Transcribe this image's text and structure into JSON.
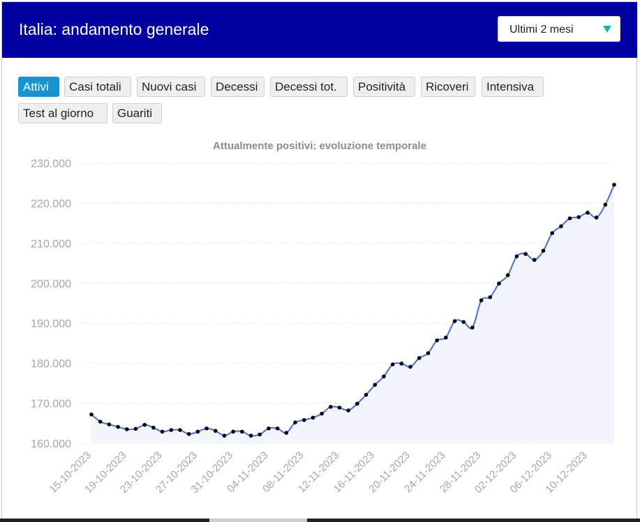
{
  "header": {
    "title": "Italia: andamento generale",
    "period_select": {
      "value": "Ultimi 2 mesi",
      "caret_color": "#19b5a8"
    },
    "background": "#0000a0"
  },
  "tabs": [
    {
      "label": "Attivi",
      "active": true
    },
    {
      "label": "Casi totali",
      "active": false
    },
    {
      "label": "Nuovi casi",
      "active": false
    },
    {
      "label": "Decessi",
      "active": false
    },
    {
      "label": "Decessi tot.",
      "active": false
    },
    {
      "label": "Positività",
      "active": false
    },
    {
      "label": "Ricoveri",
      "active": false
    },
    {
      "label": "Intensiva",
      "active": false
    },
    {
      "label": "Test al giorno",
      "active": false
    },
    {
      "label": "Guariti",
      "active": false
    }
  ],
  "accent_color": "#1794cf",
  "chart_data": {
    "type": "area",
    "title": "Attualmente positivi: evoluzione temporale",
    "xlabel": "",
    "ylabel": "",
    "ylim": [
      160000,
      230000
    ],
    "yticks": [
      160000,
      170000,
      180000,
      190000,
      200000,
      210000,
      220000,
      230000
    ],
    "ytick_labels": [
      "160.000",
      "170.000",
      "180.000",
      "190.000",
      "200.000",
      "210.000",
      "220.000",
      "230.000"
    ],
    "xtick_labels": [
      "15-10-2023",
      "19-10-2023",
      "23-10-2023",
      "27-10-2023",
      "31-10-2023",
      "04-11-2023",
      "08-11-2023",
      "12-11-2023",
      "16-11-2023",
      "20-11-2023",
      "24-11-2023",
      "28-11-2023",
      "02-12-2023",
      "06-12-2023",
      "10-12-2023"
    ],
    "grid": true,
    "line_color": "#5577d4",
    "fill_color": "#f4f5fc",
    "marker_color": "#000000",
    "series": [
      {
        "x_start": "15-10-2023",
        "x_step_days": 1,
        "values": [
          167200,
          165400,
          164700,
          164100,
          163500,
          163600,
          164600,
          163900,
          162900,
          163300,
          163300,
          162300,
          162900,
          163700,
          163100,
          161900,
          162900,
          162900,
          161900,
          162200,
          163700,
          163700,
          162600,
          165200,
          165800,
          166400,
          167400,
          169100,
          168900,
          168200,
          169900,
          172100,
          174600,
          176700,
          179700,
          179900,
          179100,
          181300,
          182500,
          185700,
          186400,
          190500,
          190300,
          188900,
          195700,
          196500,
          199900,
          202000,
          206700,
          207300,
          205800,
          208100,
          212500,
          214200,
          216200,
          216500,
          217600,
          216400,
          219600,
          224600
        ]
      }
    ]
  }
}
